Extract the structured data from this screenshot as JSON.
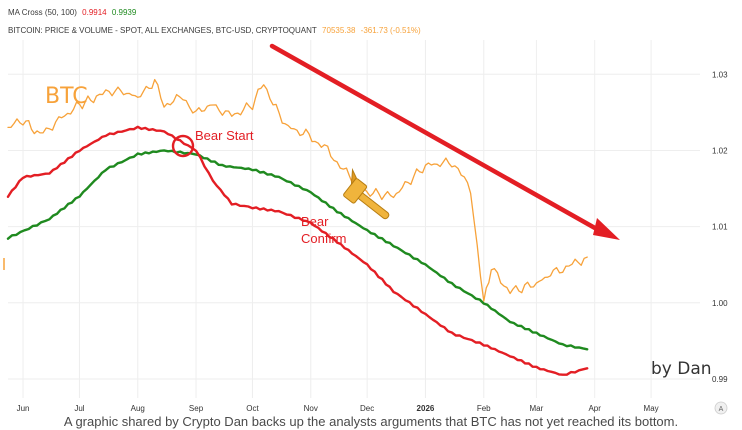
{
  "legend": {
    "line1": {
      "label": "MA Cross (50, 100)",
      "ma50": "0.9914",
      "ma100": "0.9939"
    },
    "line2": {
      "label": "BITCOIN: PRICE & VOLUME - SPOT, ALL EXCHANGES, BTC-USD, CRYPTOQUANT",
      "price": "70535.38",
      "change": "-361.73 (-0.51%)"
    }
  },
  "annotations": {
    "btc": "BTC",
    "bear_start": "Bear Start",
    "bear_confirm_1": "Bear",
    "bear_confirm_2": "Confirm",
    "by_dan": "by Dan"
  },
  "caption": "A graphic shared by Crypto Dan backs up the analysts arguments that BTC has not yet reached its bottom.",
  "colors": {
    "btc": "#f7a23a",
    "ma50": "#e31e24",
    "ma100": "#1f8a1f",
    "arrow": "#e31e24",
    "grid": "#eeeeee",
    "hammer": "#f0b43c"
  },
  "icons": {
    "hammer": "hammer-icon",
    "reset": "auto-scale-icon"
  },
  "chart_data": {
    "type": "line",
    "x_ticks": [
      "Jun",
      "Jul",
      "Aug",
      "Sep",
      "Oct",
      "Nov",
      "Dec",
      "2026",
      "Feb",
      "Mar",
      "Apr",
      "May"
    ],
    "y_ticks": [
      0.99,
      1.0,
      1.01,
      1.02,
      1.03
    ],
    "ylim": [
      0.9875,
      1.0345
    ],
    "reset_button": "A",
    "series": [
      {
        "name": "MA 100",
        "x": [
          "2025-05-24",
          "2025-06-15",
          "2025-07-01",
          "2025-07-15",
          "2025-08-01",
          "2025-08-15",
          "2025-09-01",
          "2025-09-15",
          "2025-10-01",
          "2025-10-15",
          "2025-11-01",
          "2025-11-15",
          "2025-12-01",
          "2025-12-15",
          "2026-01-01",
          "2026-01-15",
          "2026-02-01",
          "2026-02-15",
          "2026-03-01",
          "2026-03-15",
          "2026-03-28"
        ],
        "values": [
          1.0085,
          1.011,
          1.014,
          1.0175,
          1.0195,
          1.02,
          1.0195,
          1.018,
          1.0175,
          1.0165,
          1.0145,
          1.012,
          1.0095,
          1.0075,
          1.005,
          1.0025,
          1.0,
          0.9975,
          0.996,
          0.9945,
          0.9939
        ]
      },
      {
        "name": "MA 50",
        "x": [
          "2025-05-24",
          "2025-06-01",
          "2025-06-15",
          "2025-07-01",
          "2025-07-15",
          "2025-08-01",
          "2025-08-15",
          "2025-09-01",
          "2025-09-10",
          "2025-09-20",
          "2025-10-01",
          "2025-10-15",
          "2025-11-01",
          "2025-11-15",
          "2025-12-01",
          "2025-12-15",
          "2026-01-01",
          "2026-01-15",
          "2026-02-01",
          "2026-02-15",
          "2026-03-01",
          "2026-03-15",
          "2026-03-28"
        ],
        "values": [
          1.014,
          1.0165,
          1.017,
          1.02,
          1.022,
          1.023,
          1.0225,
          1.02,
          1.016,
          1.013,
          1.0125,
          1.012,
          1.0105,
          1.008,
          1.005,
          1.0015,
          0.9985,
          0.996,
          0.9945,
          0.993,
          0.9915,
          0.9905,
          0.9914
        ]
      },
      {
        "name": "BTC",
        "x": [
          "2025-05-24",
          "2025-06-01",
          "2025-06-10",
          "2025-06-20",
          "2025-07-01",
          "2025-07-10",
          "2025-07-20",
          "2025-08-01",
          "2025-08-10",
          "2025-08-15",
          "2025-08-25",
          "2025-09-01",
          "2025-09-10",
          "2025-09-20",
          "2025-10-01",
          "2025-10-07",
          "2025-10-12",
          "2025-10-20",
          "2025-10-31",
          "2025-11-10",
          "2025-11-20",
          "2025-12-01",
          "2025-12-15",
          "2026-01-01",
          "2026-01-15",
          "2026-01-25",
          "2026-02-01",
          "2026-02-05",
          "2026-02-15",
          "2026-03-01",
          "2026-03-10",
          "2026-03-20",
          "2026-03-28"
        ],
        "values": [
          1.023,
          1.024,
          1.022,
          1.024,
          1.026,
          1.027,
          1.028,
          1.027,
          1.029,
          1.026,
          1.027,
          1.025,
          1.026,
          1.0245,
          1.026,
          1.029,
          1.026,
          1.023,
          1.022,
          1.02,
          1.017,
          1.0145,
          1.014,
          1.018,
          1.0185,
          1.015,
          1.0,
          1.0045,
          1.0015,
          1.0025,
          1.004,
          1.005,
          1.006
        ]
      }
    ]
  }
}
